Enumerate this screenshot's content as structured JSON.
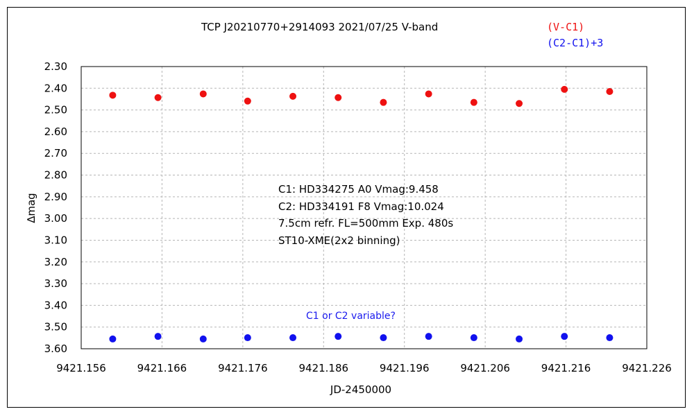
{
  "colors": {
    "v_c1": "#ee1111",
    "c2_c1": "#1111ee",
    "note": "#1a1aee"
  },
  "chart_data": {
    "type": "scatter",
    "title": "TCP J20210770+2914093   2021/07/25   V-band",
    "xlabel": "JD-2450000",
    "ylabel": "∆mag",
    "xlim": [
      9421.156,
      9421.226
    ],
    "ylim": [
      3.6,
      2.3
    ],
    "y_inverted": true,
    "grid": true,
    "legend_position": "top-right",
    "xticks": [
      "9421.156",
      "9421.166",
      "9421.176",
      "9421.186",
      "9421.196",
      "9421.206",
      "9421.216",
      "9421.226"
    ],
    "yticks": [
      "2.30",
      "2.40",
      "2.50",
      "2.60",
      "2.70",
      "2.80",
      "2.90",
      "3.00",
      "3.10",
      "3.20",
      "3.30",
      "3.40",
      "3.50",
      "3.60"
    ],
    "series": [
      {
        "name": "(V-C1)",
        "color": "#ee1111",
        "x": [
          9421.1599,
          9421.1655,
          9421.1711,
          9421.1766,
          9421.1822,
          9421.1878,
          9421.1934,
          9421.199,
          9421.2046,
          9421.2102,
          9421.2158,
          9421.2214
        ],
        "y": [
          2.432,
          2.443,
          2.426,
          2.459,
          2.437,
          2.443,
          2.465,
          2.426,
          2.465,
          2.47,
          2.405,
          2.415
        ]
      },
      {
        "name": "(C2-C1)+3",
        "color": "#1111ee",
        "x": [
          9421.1599,
          9421.1655,
          9421.1711,
          9421.1766,
          9421.1822,
          9421.1878,
          9421.1934,
          9421.199,
          9421.2046,
          9421.2102,
          9421.2158,
          9421.2214
        ],
        "y": [
          3.555,
          3.543,
          3.555,
          3.549,
          3.549,
          3.543,
          3.549,
          3.543,
          3.549,
          3.555,
          3.543,
          3.549
        ]
      }
    ],
    "annotations": {
      "info_lines": [
        "C1: HD334275 A0  Vmag:9.458",
        "C2: HD334191 F8  Vmag:10.024",
        "7.5cm refr. FL=500mm Exp. 480s",
        "ST10-XME(2x2 binning)"
      ],
      "note": "C1 or C2 variable?"
    }
  }
}
